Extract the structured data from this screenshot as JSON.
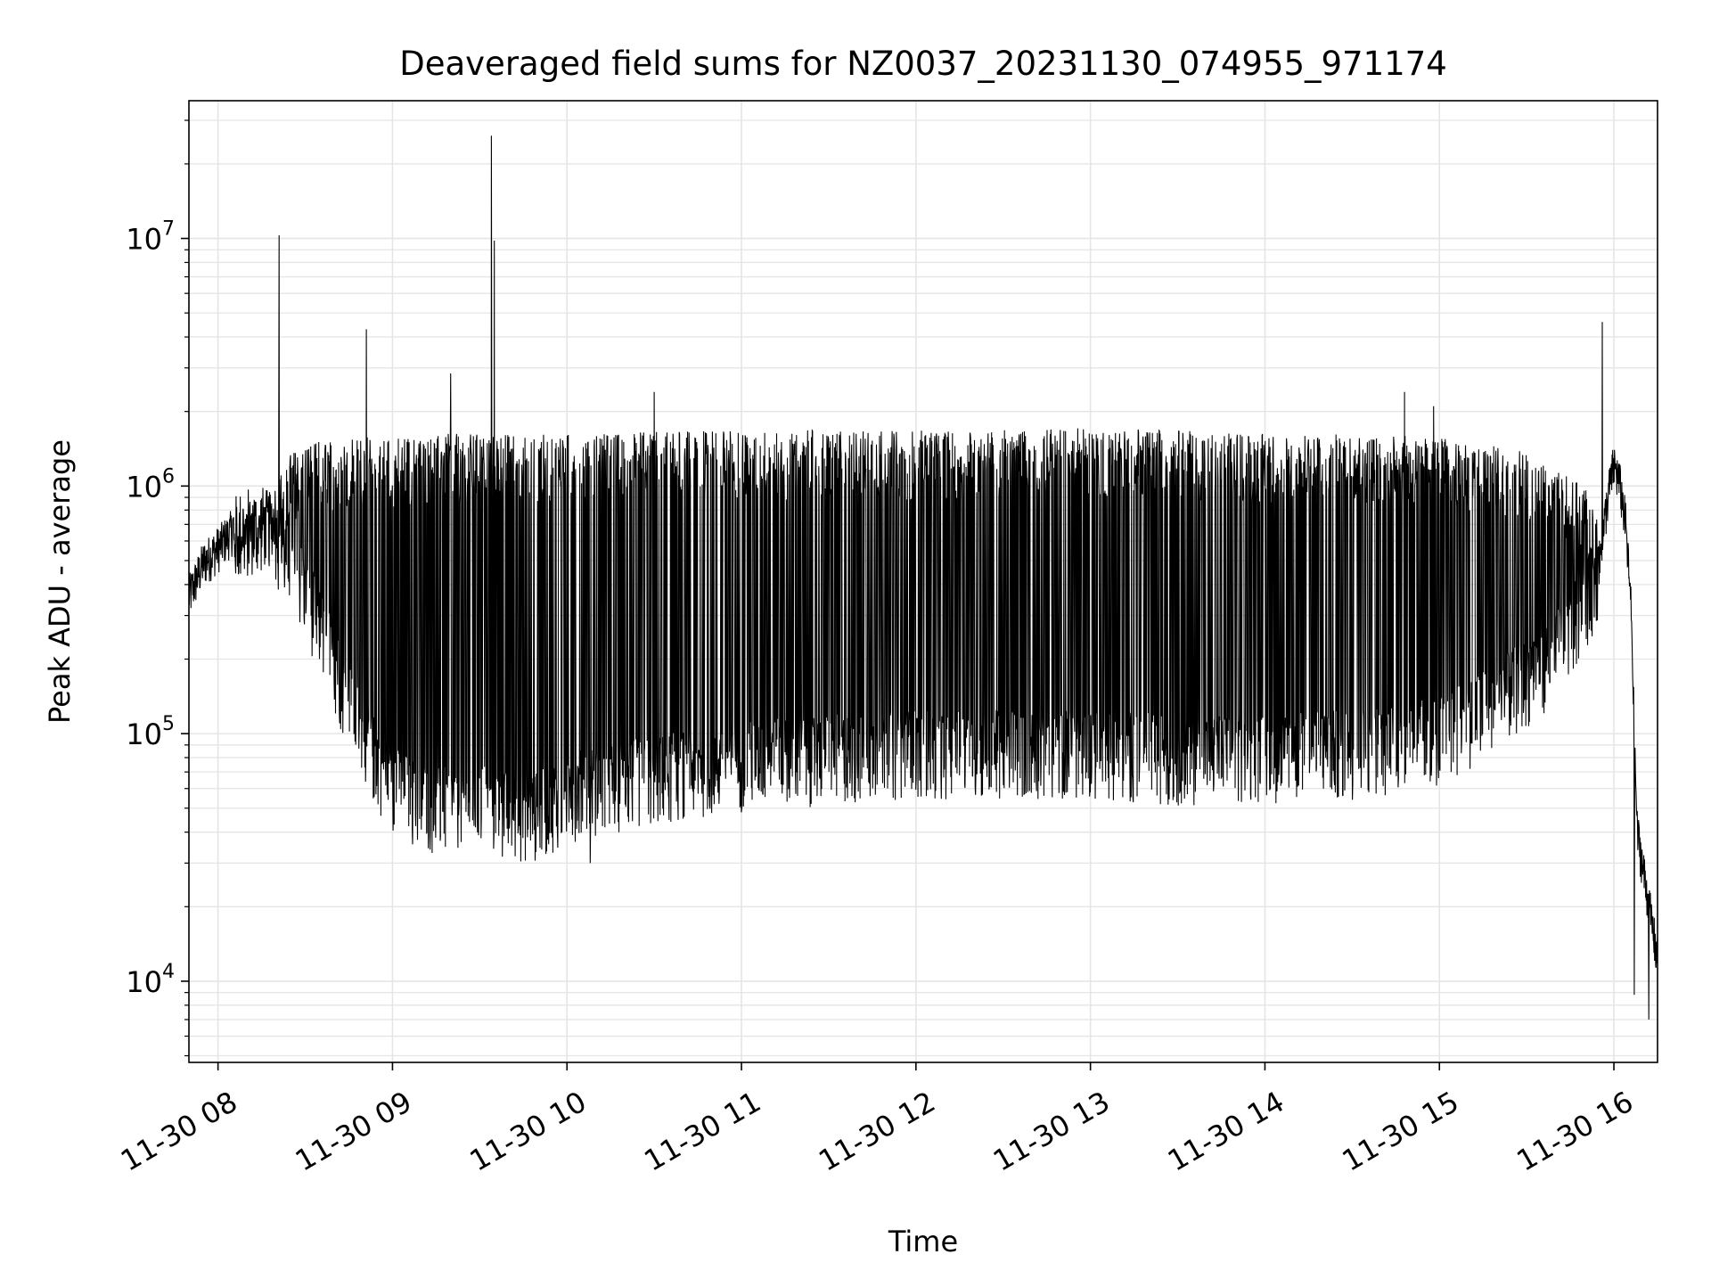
{
  "chart_data": {
    "type": "line",
    "title": "Deaveraged field sums for NZ0037_20231130_074955_971174",
    "xlabel": "Time",
    "ylabel": "Peak ADU - average",
    "x_scale": "time",
    "y_scale": "log",
    "xlim": [
      "2023-11-30 07:50",
      "2023-11-30 16:15"
    ],
    "ylim": [
      4700,
      36000000
    ],
    "x_ticks": [
      "2023-11-30 08:00",
      "2023-11-30 09:00",
      "2023-11-30 10:00",
      "2023-11-30 11:00",
      "2023-11-30 12:00",
      "2023-11-30 13:00",
      "2023-11-30 14:00",
      "2023-11-30 15:00",
      "2023-11-30 16:00"
    ],
    "x_tick_labels": [
      "11-30 08",
      "11-30 09",
      "11-30 10",
      "11-30 11",
      "11-30 12",
      "11-30 13",
      "11-30 14",
      "11-30 15",
      "11-30 16"
    ],
    "y_ticks": [
      10000,
      100000,
      1000000,
      10000000
    ],
    "y_tick_labels": [
      {
        "base": "10",
        "exp": "4"
      },
      {
        "base": "10",
        "exp": "5"
      },
      {
        "base": "10",
        "exp": "6"
      },
      {
        "base": "10",
        "exp": "7"
      }
    ],
    "grid": true,
    "line_color": "#000000",
    "grid_color": "#e5e5e5",
    "series": [
      {
        "baseline": {
          "x": [
            "07:50",
            "07:55",
            "08:00",
            "08:05",
            "08:10",
            "08:15",
            "08:20",
            "08:25",
            "08:30",
            "08:35",
            "08:40",
            "08:45",
            "08:50",
            "08:55",
            "09:00",
            "09:10",
            "09:20",
            "09:30",
            "09:40",
            "09:50",
            "10:00",
            "10:15",
            "10:30",
            "11:00",
            "11:30",
            "12:00",
            "12:30",
            "13:00",
            "13:30",
            "14:00",
            "14:30",
            "15:00",
            "15:20",
            "15:40",
            "15:50",
            "15:55",
            "15:58",
            "16:00",
            "16:02",
            "16:04",
            "16:06",
            "16:07",
            "16:08",
            "16:10",
            "16:12",
            "16:15"
          ],
          "y": [
            350000,
            480000,
            550000,
            650000,
            700000,
            720000,
            650000,
            480000,
            400000,
            280000,
            200000,
            140000,
            100000,
            80000,
            65000,
            55000,
            52000,
            55000,
            50000,
            50000,
            60000,
            65000,
            70000,
            80000,
            85000,
            90000,
            90000,
            90000,
            85000,
            85000,
            90000,
            100000,
            140000,
            220000,
            350000,
            480000,
            900000,
            1200000,
            1000000,
            700000,
            300000,
            100000,
            40000,
            28000,
            20000,
            12000
          ]
        },
        "tops": {
          "x": [
            "08:05",
            "08:15",
            "08:20",
            "08:25",
            "08:30",
            "08:35",
            "08:40",
            "08:45",
            "08:50",
            "08:55",
            "09:00",
            "09:10",
            "09:20",
            "09:30",
            "09:40",
            "09:50",
            "10:00",
            "10:15",
            "10:30",
            "11:00",
            "11:30",
            "12:00",
            "12:30",
            "13:00",
            "13:30",
            "14:00",
            "14:30",
            "15:00",
            "15:20",
            "15:30",
            "15:40",
            "15:50",
            "15:55"
          ],
          "y": [
            720000,
            800000,
            1000000,
            1300000,
            1400000,
            1450000,
            1450000,
            1500000,
            1500000,
            1500000,
            1500000,
            1500000,
            1550000,
            1550000,
            1550000,
            1550000,
            1550000,
            1550000,
            1600000,
            1600000,
            1600000,
            1600000,
            1600000,
            1650000,
            1600000,
            1550000,
            1550000,
            1500000,
            1400000,
            1300000,
            1100000,
            950000,
            900000
          ]
        },
        "spikes": [
          {
            "x": "08:21",
            "y": 10300000
          },
          {
            "x": "08:51",
            "y": 4300000
          },
          {
            "x": "09:20",
            "y": 2850000
          },
          {
            "x": "09:34",
            "y": 26000000
          },
          {
            "x": "09:35",
            "y": 9800000
          },
          {
            "x": "10:30",
            "y": 2400000
          },
          {
            "x": "14:48",
            "y": 2400000
          },
          {
            "x": "14:58",
            "y": 2100000
          },
          {
            "x": "15:56",
            "y": 4600000
          }
        ],
        "dips": [
          {
            "x": "10:08",
            "y": 30000
          },
          {
            "x": "16:07",
            "y": 8800.0
          },
          {
            "x": "16:12",
            "y": 7000
          }
        ]
      }
    ]
  }
}
